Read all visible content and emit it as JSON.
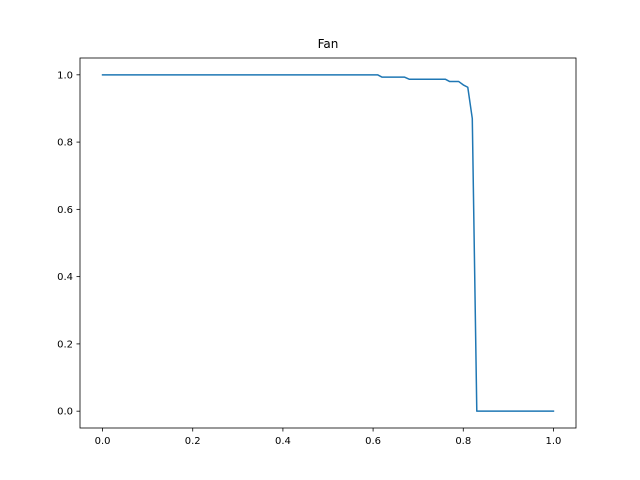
{
  "chart_data": {
    "type": "line",
    "title": "Fan",
    "xlabel": "",
    "ylabel": "",
    "xlim": [
      -0.05,
      1.05
    ],
    "ylim": [
      -0.05,
      1.05
    ],
    "grid": false,
    "legend": "none",
    "xticks": [
      "0.0",
      "0.2",
      "0.4",
      "0.6",
      "0.8",
      "1.0"
    ],
    "yticks": [
      "0.0",
      "0.2",
      "0.4",
      "0.6",
      "0.8",
      "1.0"
    ],
    "series": [
      {
        "color": "#1f77b4",
        "x": [
          0.0,
          0.61,
          0.62,
          0.67,
          0.68,
          0.76,
          0.77,
          0.79,
          0.8,
          0.81,
          0.82,
          0.83,
          0.84,
          0.9,
          1.0
        ],
        "y": [
          1.0,
          1.0,
          0.993,
          0.993,
          0.987,
          0.987,
          0.98,
          0.98,
          0.97,
          0.963,
          0.87,
          0.0,
          0.0,
          0.0,
          0.0
        ]
      }
    ]
  }
}
